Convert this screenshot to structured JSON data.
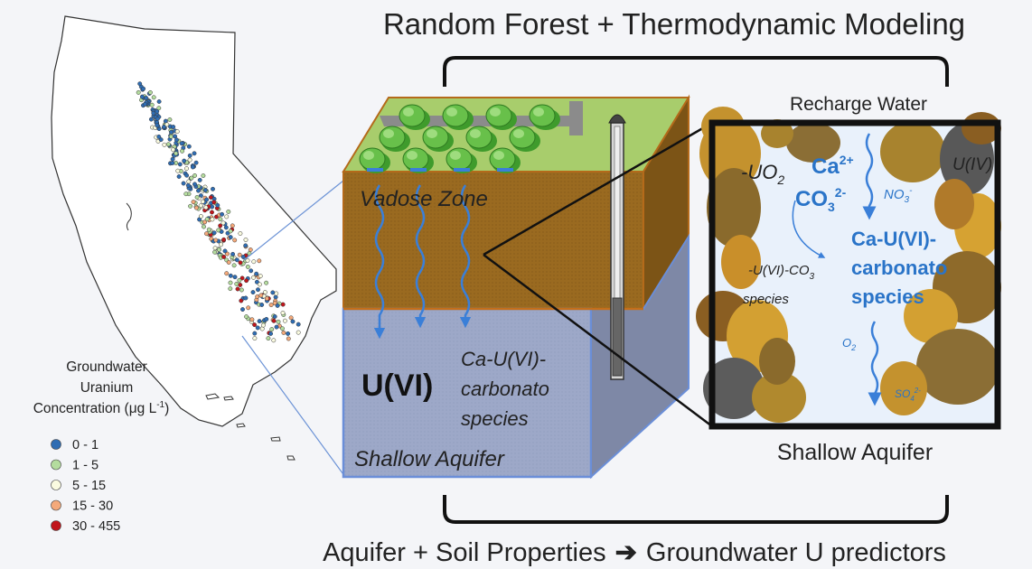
{
  "title": "Random Forest + Thermodynamic Modeling",
  "bottom_caption": {
    "left": "Aquifer + Soil Properties",
    "arrow": "➔",
    "right": "Groundwater U predictors"
  },
  "legend": {
    "title_line1": "Groundwater",
    "title_line2": "Uranium",
    "title_line3": "Concentration (μg L",
    "title_sup": "-1",
    "title_end": ")",
    "items": [
      {
        "label": "0 - 1",
        "color": "#2f6db3"
      },
      {
        "label": "1 - 5",
        "color": "#b4dc9e"
      },
      {
        "label": "5 - 15",
        "color": "#fafbe0"
      },
      {
        "label": "15 - 30",
        "color": "#f4a97a"
      },
      {
        "label": "30 - 455",
        "color": "#c0161c"
      }
    ]
  },
  "block": {
    "vadose_label": "Vadose Zone",
    "u_label": "U(VI)",
    "species_line1": "Ca-U(VI)-",
    "species_line2": "carbonato",
    "species_line3": "species",
    "aquifer_label": "Shallow Aquifer"
  },
  "zoom": {
    "recharge_label": "Recharge Water",
    "aquifer_label": "Shallow Aquifer",
    "uo2": "-UO",
    "uo2_sub": "2",
    "ca": "Ca",
    "ca_sup": "2+",
    "co3": "CO",
    "co3_sub": "3",
    "co3_sup": "2-",
    "no3": "NO",
    "no3_sub": "3",
    "no3_sup": "-",
    "uiv": "U(IV)",
    "species_line1": "Ca-U(VI)-",
    "species_line2": "carbonato",
    "species_line3": "species",
    "uvi_co3": "-U(VI)-CO",
    "uvi_co3_sub": "3",
    "uvi_species": "species",
    "o2": "O",
    "o2_sub": "2",
    "so4": "SO",
    "so4_sub": "4",
    "so4_sup": "2-"
  },
  "colors": {
    "soil": "#9c6a1e",
    "grass": "#a6cc6a",
    "aquifer": "#9aa6c6",
    "water": "#e9f1fb",
    "accent_blue": "#2f7fd0",
    "frame": "#111111"
  }
}
